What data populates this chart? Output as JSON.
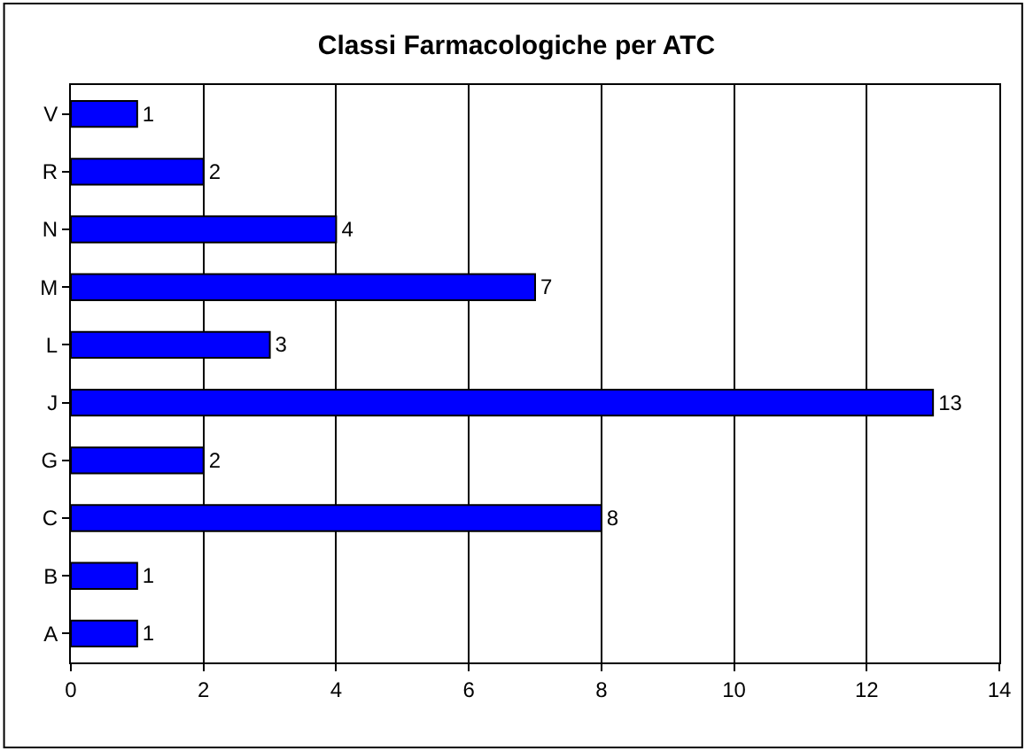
{
  "chart_data": {
    "type": "bar",
    "orientation": "horizontal",
    "title": "Classi Farmacologiche per ATC",
    "categories": [
      "V",
      "R",
      "N",
      "M",
      "L",
      "J",
      "G",
      "C",
      "B",
      "A"
    ],
    "values": [
      1,
      2,
      4,
      7,
      3,
      13,
      2,
      8,
      1,
      1
    ],
    "color": "#0000ff",
    "xlim": [
      0,
      14
    ],
    "xticks": [
      0,
      2,
      4,
      6,
      8,
      10,
      12,
      14
    ],
    "grid": "x",
    "data_labels": true
  }
}
